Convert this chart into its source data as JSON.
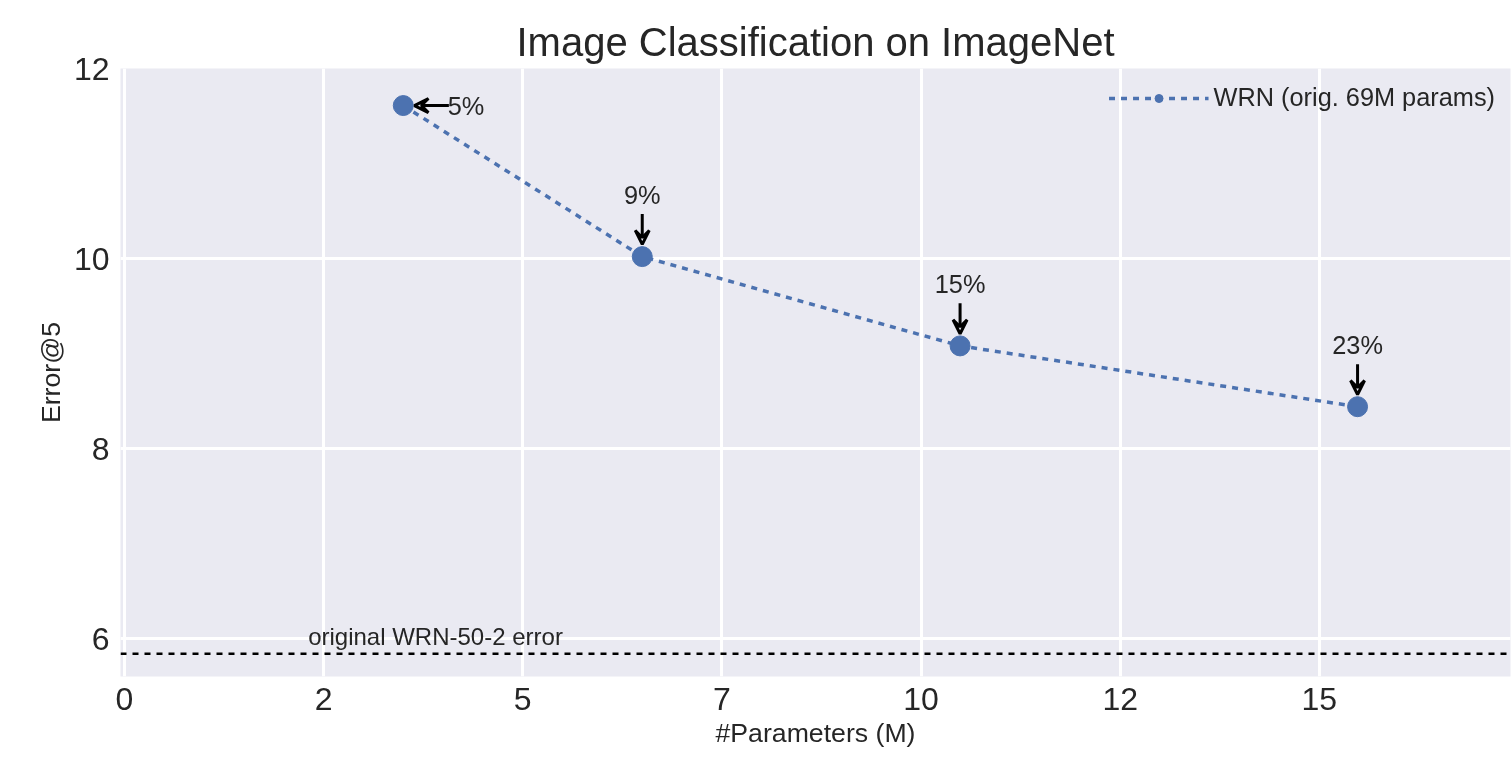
{
  "chart_data": {
    "type": "line",
    "title": "Image Classification on ImageNet",
    "xlabel": "#Parameters (M)",
    "ylabel": "Error@5",
    "x": [
      3.5,
      6.5,
      10.49,
      15.48
    ],
    "series": [
      {
        "name": "WRN (orig. 69M params)",
        "color": "#4c72b0",
        "values": [
          11.61,
          10.02,
          9.08,
          8.44
        ]
      }
    ],
    "xlim": [
      -0.05,
      17.4
    ],
    "ylim": [
      5.6,
      12
    ],
    "xticks": [
      0,
      {
        "value": 2.5,
        "label": "2"
      },
      5,
      {
        "value": 7.5,
        "label": "7"
      },
      10,
      {
        "value": 12.5,
        "label": "12"
      },
      15
    ],
    "yticks": [
      6,
      8,
      10,
      12
    ],
    "annotations": [
      {
        "text": "5%",
        "x": 3.5,
        "y": 11.61
      },
      {
        "text": "9%",
        "x": 6.5,
        "y": 10.02
      },
      {
        "text": "15%",
        "x": 10.49,
        "y": 9.08
      },
      {
        "text": "23%",
        "x": 15.48,
        "y": 8.44
      }
    ],
    "ref_lines": [
      {
        "axis": "y",
        "value": 5.84,
        "label": "original WRN-50-2 error",
        "color": "#000000",
        "line_style": "dashed"
      }
    ],
    "grid": true,
    "legend": "top right",
    "marker": "circle",
    "line_style": "dashed"
  }
}
